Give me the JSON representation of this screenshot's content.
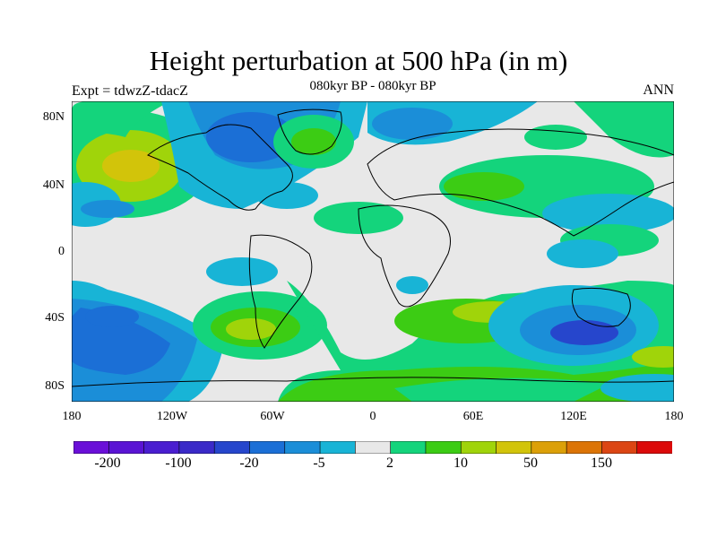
{
  "title": "Height perturbation at 500 hPa (in m)",
  "subtitle": "080kyr BP - 080kyr BP",
  "left_label": "Expt = tdwzZ-tdacZ",
  "right_label": "ANN",
  "lat_labels": [
    "80N",
    "40N",
    "0",
    "40S",
    "80S"
  ],
  "lon_labels": [
    "180",
    "120W",
    "60W",
    "0",
    "60E",
    "120E",
    "180"
  ],
  "colorbar": {
    "colors": [
      "#6a0fd8",
      "#5a14d4",
      "#4a1ed0",
      "#3a2ac8",
      "#2646cc",
      "#1b6fd6",
      "#1b8ed8",
      "#18b4d6",
      "#e8e8e8",
      "#14d47c",
      "#3ccc14",
      "#a0d40a",
      "#d2c40a",
      "#dca008",
      "#dc7406",
      "#dc4614",
      "#dc0a0a"
    ],
    "labels": [
      "-200",
      "-100",
      "-20",
      "-5",
      "2",
      "10",
      "50",
      "150"
    ]
  },
  "map": {
    "land_outline_color": "#000000",
    "background_color": "#e8e8e8",
    "anomaly_regions": [
      {
        "name": "N Pacific high",
        "color": "#14d47c"
      },
      {
        "name": "N Pacific core",
        "color": "#d2c40a"
      },
      {
        "name": "Arctic low",
        "color": "#1b8ed8"
      },
      {
        "name": "Greenland high",
        "color": "#3ccc14"
      },
      {
        "name": "S Pacific low",
        "color": "#1b6fd6"
      },
      {
        "name": "S Atlantic high",
        "color": "#a0d40a"
      },
      {
        "name": "Australia low",
        "color": "#2646cc"
      },
      {
        "name": "Southern Ocean high",
        "color": "#3ccc14"
      }
    ]
  }
}
